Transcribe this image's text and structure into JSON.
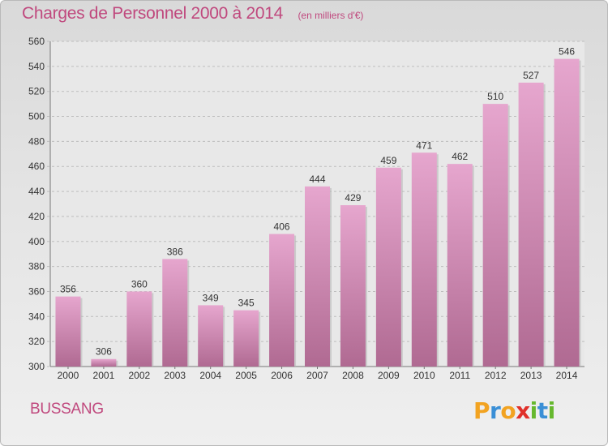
{
  "header": {
    "title": "Charges de Personnel 2000 à 2014",
    "subtitle": "(en milliers d'€)"
  },
  "footer": {
    "commune": "BUSSANG",
    "logo": {
      "letters": [
        "P",
        "r",
        "o",
        "x",
        "i",
        "t",
        "i"
      ],
      "colors": [
        "#f2a321",
        "#3a8fd6",
        "#f2a321",
        "#e0302a",
        "#66b82e",
        "#3a8fd6",
        "#66b82e"
      ]
    }
  },
  "chart_data": {
    "type": "bar",
    "categories": [
      "2000",
      "2001",
      "2002",
      "2003",
      "2004",
      "2005",
      "2006",
      "2007",
      "2008",
      "2009",
      "2010",
      "2011",
      "2012",
      "2013",
      "2014"
    ],
    "values": [
      356,
      306,
      360,
      386,
      349,
      345,
      406,
      444,
      429,
      459,
      471,
      462,
      510,
      527,
      546
    ],
    "ylim": [
      300,
      560
    ],
    "yticks": [
      300,
      320,
      340,
      360,
      380,
      400,
      420,
      440,
      460,
      480,
      500,
      520,
      540,
      560
    ],
    "grid": true,
    "colors": {
      "bar_top": "#e6a6ce",
      "bar_bottom": "#b06a92",
      "grid": "#bdbdbd",
      "axis": "#777777"
    }
  }
}
